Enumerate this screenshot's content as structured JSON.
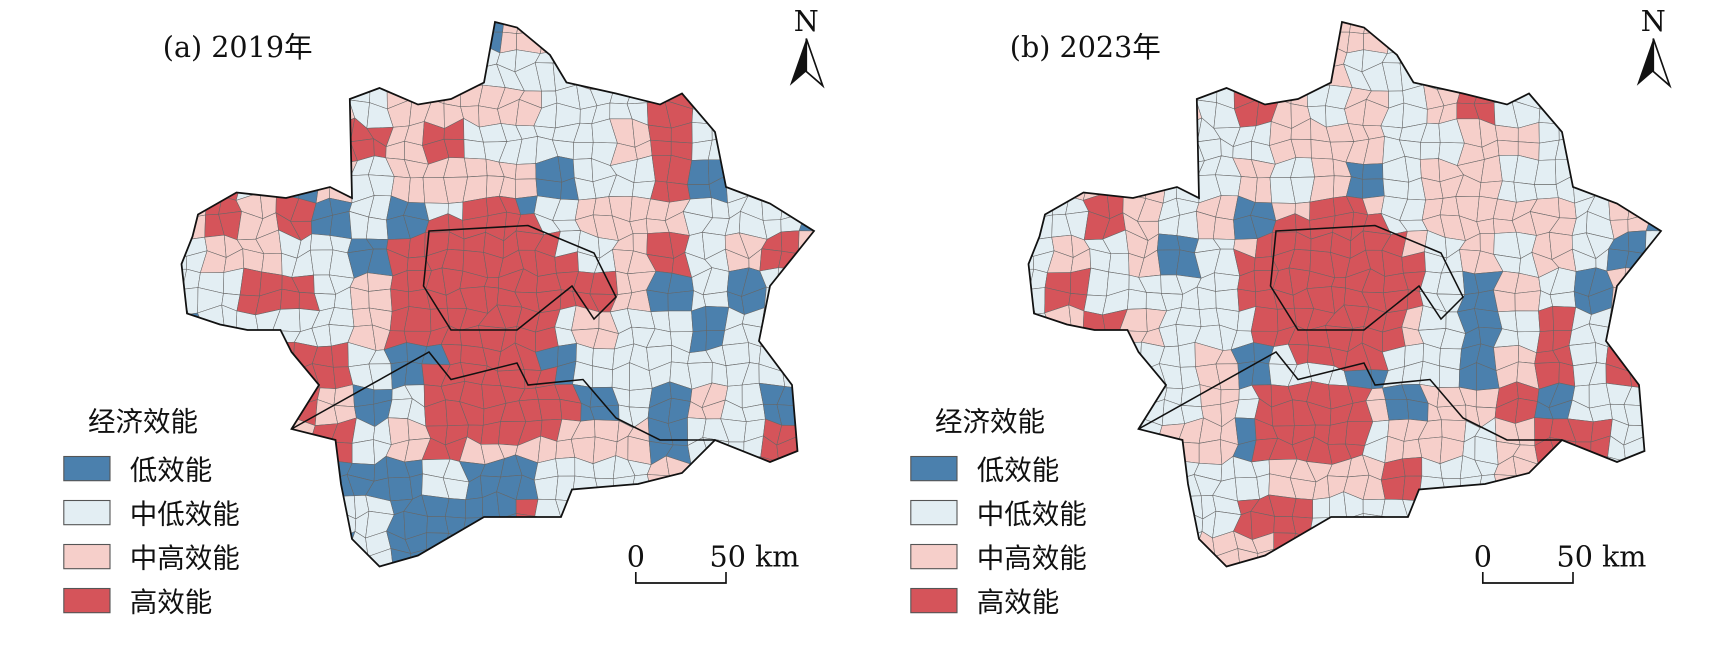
{
  "panels": [
    {
      "title": "(a) 2019年",
      "north": "N",
      "legend": {
        "title": "经济效能",
        "items": [
          {
            "label": "低效能",
            "color": "#4b80ad"
          },
          {
            "label": "中低效能",
            "color": "#e3eef3"
          },
          {
            "label": "中高效能",
            "color": "#f6cfca"
          },
          {
            "label": "高效能",
            "color": "#d5545a"
          }
        ]
      },
      "scale_bar": {
        "labels": [
          "0",
          "50 km"
        ]
      }
    },
    {
      "title": "(b) 2023年",
      "north": "N",
      "legend": {
        "title": "经济效能",
        "items": [
          {
            "label": "低效能",
            "color": "#4b80ad"
          },
          {
            "label": "中低效能",
            "color": "#e3eef3"
          },
          {
            "label": "中高效能",
            "color": "#f6cfca"
          },
          {
            "label": "高效能",
            "color": "#d5545a"
          }
        ]
      },
      "scale_bar": {
        "labels": [
          "0",
          "50 km"
        ]
      }
    }
  ]
}
